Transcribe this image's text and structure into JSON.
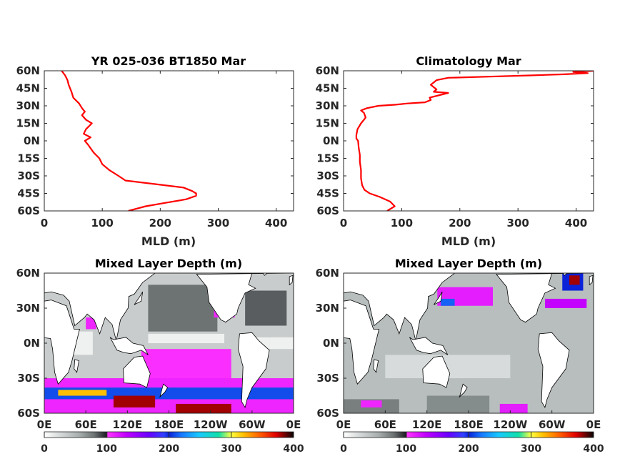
{
  "chart_data": [
    {
      "type": "line",
      "title": "YR 025-036 BT1850 Mar",
      "xlabel": "MLD (m)",
      "ylabel": "",
      "xlim": [
        0,
        430
      ],
      "ylim": [
        -60,
        60
      ],
      "xticks": [
        "0",
        "100",
        "200",
        "300",
        "400"
      ],
      "yticks": [
        "60N",
        "45N",
        "30N",
        "15N",
        "0N",
        "15S",
        "30S",
        "45S",
        "60S"
      ],
      "grid": false,
      "color": "#ff0000",
      "series": [
        {
          "x": [
            145,
            175,
            210,
            245,
            262,
            262,
            255,
            240,
            190,
            140,
            128,
            112,
            100,
            95,
            85,
            78,
            75,
            70,
            80,
            68,
            72,
            82,
            72,
            65,
            70,
            65,
            60,
            50,
            47,
            42,
            40,
            36,
            30
          ],
          "y": [
            -60,
            -56,
            -53,
            -50,
            -47,
            -45,
            -43,
            -40,
            -37,
            -34,
            -30,
            -25,
            -20,
            -15,
            -10,
            -5,
            -3,
            0,
            3,
            6,
            10,
            15,
            18,
            22,
            25,
            28,
            32,
            37,
            42,
            48,
            52,
            56,
            60
          ]
        }
      ]
    },
    {
      "type": "line",
      "title": "Climatology Mar",
      "xlabel": "MLD (m)",
      "ylabel": "",
      "xlim": [
        0,
        430
      ],
      "ylim": [
        -60,
        60
      ],
      "xticks": [
        "0",
        "100",
        "200",
        "300",
        "400"
      ],
      "yticks": [
        "60N",
        "45N",
        "30N",
        "15N",
        "0N",
        "15S",
        "30S",
        "45S",
        "60S"
      ],
      "grid": false,
      "color": "#ff0000",
      "series": [
        {
          "x": [
            75,
            88,
            80,
            62,
            45,
            36,
            32,
            30,
            30,
            28,
            28,
            26,
            25,
            22,
            22,
            24,
            30,
            35,
            38,
            35,
            30,
            40,
            60,
            90,
            110,
            140,
            150,
            148,
            180,
            155,
            160,
            150,
            160,
            180,
            250,
            320,
            380,
            420,
            395,
            430
          ],
          "y": [
            -60,
            -56,
            -52,
            -48,
            -45,
            -42,
            -38,
            -32,
            -25,
            -18,
            -12,
            -6,
            0,
            2,
            5,
            10,
            15,
            18,
            20,
            24,
            26,
            28,
            30,
            31,
            32,
            33,
            35,
            37,
            41,
            42,
            44,
            48,
            52,
            54,
            55,
            56,
            57,
            58,
            59,
            60
          ]
        }
      ]
    },
    {
      "type": "heatmap",
      "title": "Mixed Layer Depth (m)",
      "xticks": [
        "0E",
        "60E",
        "120E",
        "180E",
        "120W",
        "60W",
        "0E"
      ],
      "yticks": [
        "60N",
        "30N",
        "0N",
        "30S",
        "60S"
      ],
      "xlim": [
        0,
        360
      ],
      "ylim": [
        -60,
        60
      ],
      "colorbar": {
        "min": 0,
        "max": 400,
        "ticks": [
          "0",
          "100",
          "200",
          "300",
          "400"
        ]
      },
      "regions": [
        {
          "lon": [
            0,
            360
          ],
          "lat": [
            -60,
            60
          ],
          "value": 35
        },
        {
          "lon": [
            150,
            250
          ],
          "lat": [
            10,
            50
          ],
          "value": 80
        },
        {
          "lon": [
            290,
            350
          ],
          "lat": [
            15,
            45
          ],
          "value": 85
        },
        {
          "lon": [
            30,
            70
          ],
          "lat": [
            -10,
            10
          ],
          "value": 10
        },
        {
          "lon": [
            150,
            260
          ],
          "lat": [
            0,
            8
          ],
          "value": 10
        },
        {
          "lon": [
            285,
            325
          ],
          "lat": [
            -10,
            5
          ],
          "value": 10
        },
        {
          "lon": [
            325,
            360
          ],
          "lat": [
            -5,
            5
          ],
          "value": 10
        },
        {
          "lon": [
            0,
            360
          ],
          "lat": [
            -60,
            -30
          ],
          "value": 110
        },
        {
          "lon": [
            140,
            270
          ],
          "lat": [
            -30,
            -5
          ],
          "value": 105
        },
        {
          "lon": [
            0,
            360
          ],
          "lat": [
            -48,
            -38
          ],
          "value": 210
        },
        {
          "lon": [
            20,
            90
          ],
          "lat": [
            -45,
            -40
          ],
          "value": 320
        },
        {
          "lon": [
            100,
            160
          ],
          "lat": [
            -55,
            -45
          ],
          "value": 380
        },
        {
          "lon": [
            190,
            270
          ],
          "lat": [
            -60,
            -52
          ],
          "value": 380
        },
        {
          "lon": [
            60,
            75
          ],
          "lat": [
            12,
            22
          ],
          "value": 110
        },
        {
          "lon": [
            245,
            275
          ],
          "lat": [
            22,
            30
          ],
          "value": 110
        }
      ]
    },
    {
      "type": "heatmap",
      "title": "Mixed Layer Depth (m)",
      "xticks": [
        "0E",
        "60E",
        "120E",
        "180E",
        "120W",
        "60W",
        "0E"
      ],
      "yticks": [
        "60N",
        "30N",
        "0N",
        "30S",
        "60S"
      ],
      "xlim": [
        0,
        360
      ],
      "ylim": [
        -60,
        60
      ],
      "colorbar": {
        "min": 0,
        "max": 400,
        "ticks": [
          "0",
          "100",
          "200",
          "300",
          "400"
        ]
      },
      "regions": [
        {
          "lon": [
            0,
            360
          ],
          "lat": [
            -60,
            60
          ],
          "value": 45
        },
        {
          "lon": [
            60,
            240
          ],
          "lat": [
            -30,
            -10
          ],
          "value": 25
        },
        {
          "lon": [
            120,
            210
          ],
          "lat": [
            -60,
            -45
          ],
          "value": 70
        },
        {
          "lon": [
            0,
            80
          ],
          "lat": [
            -60,
            -48
          ],
          "value": 75
        },
        {
          "lon": [
            135,
            215
          ],
          "lat": [
            32,
            48
          ],
          "value": 115
        },
        {
          "lon": [
            140,
            160
          ],
          "lat": [
            32,
            38
          ],
          "value": 215
        },
        {
          "lon": [
            290,
            350
          ],
          "lat": [
            30,
            38
          ],
          "value": 130
        },
        {
          "lon": [
            315,
            345
          ],
          "lat": [
            45,
            60
          ],
          "value": 200
        },
        {
          "lon": [
            325,
            340
          ],
          "lat": [
            50,
            58
          ],
          "value": 380
        },
        {
          "lon": [
            25,
            55
          ],
          "lat": [
            -55,
            -49
          ],
          "value": 110
        },
        {
          "lon": [
            225,
            265
          ],
          "lat": [
            -60,
            -52
          ],
          "value": 115
        }
      ]
    }
  ]
}
